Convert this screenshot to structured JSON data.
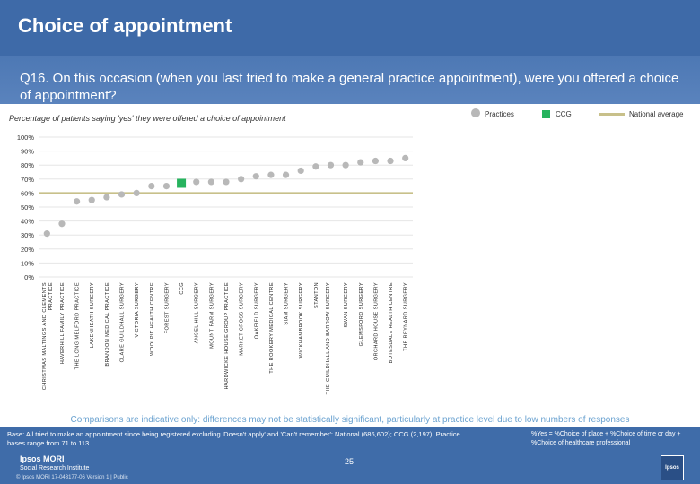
{
  "header": {
    "title": "Choice of appointment"
  },
  "question": "Q16. On this occasion (when you last tried to make a general practice appointment), were you offered a choice of appointment?",
  "subtitle": "Percentage of patients saying 'yes' they were offered a choice of appointment",
  "legend": {
    "practices": "Practices",
    "ccg": "CCG",
    "national": "National average"
  },
  "colors": {
    "practice": "#b8b8b8",
    "ccg": "#27b35e",
    "national": "#c8c08a",
    "band": "#3e6aa8"
  },
  "chart_data": {
    "type": "scatter",
    "title": "Percentage of patients saying 'yes' they were offered a choice of appointment",
    "ylim": [
      0,
      100
    ],
    "yticks": [
      "0%",
      "10%",
      "20%",
      "30%",
      "40%",
      "50%",
      "60%",
      "70%",
      "80%",
      "90%",
      "100%"
    ],
    "national_average": 60,
    "categories": [
      "CHRISTMAS MALTINGS AND CLEMENTS PRACTICE",
      "HAVERHILL FAMILY PRACTICE",
      "THE LONG MELFORD PRACTICE",
      "LAKENHEATH SURGERY",
      "BRANDON MEDICAL PRACTICE",
      "CLARE GUILDHALL SURGERY",
      "VICTORIA SURGERY",
      "WOOLPIT HEALTH CENTRE",
      "FOREST SURGERY",
      "CCG",
      "ANGEL HILL SURGERY",
      "MOUNT FARM SURGERY",
      "HARDWICKE HOUSE GROUP PRACTICE",
      "MARKET CROSS SURGERY",
      "OAKFIELD SURGERY",
      "THE ROOKERY MEDICAL CENTRE",
      "SIAM SURGERY",
      "WICKHAMBROOK SURGERY",
      "STANTON",
      "THE GUILDHALL AND BARROW SURGERY",
      "SWAN SURGERY",
      "GLEMSFORD SURGERY",
      "ORCHARD HOUSE SURGERY",
      "BOTESDALE HEALTH CENTRE",
      "THE REYNARD SURGERY"
    ],
    "values": [
      31,
      38,
      54,
      55,
      57,
      59,
      60,
      65,
      65,
      67,
      68,
      68,
      68,
      70,
      72,
      73,
      73,
      76,
      79,
      80,
      80,
      82,
      83,
      83,
      85
    ],
    "is_ccg": [
      false,
      false,
      false,
      false,
      false,
      false,
      false,
      false,
      false,
      true,
      false,
      false,
      false,
      false,
      false,
      false,
      false,
      false,
      false,
      false,
      false,
      false,
      false,
      false,
      false
    ]
  },
  "disclaimer": "Comparisons are indicative only: differences may not be statistically significant, particularly at practice level due to low numbers of responses",
  "footer": {
    "base": "Base: All tried to make an appointment since being registered excluding 'Doesn't apply' and 'Can't remember': National (686,602); CCG (2,197); Practice bases range from 71 to 113",
    "note": "%Yes = %Choice of place + %Choice of time or day + %Choice of healthcare professional",
    "page": "25",
    "logo_line1": "Ipsos MORI",
    "logo_line2": "Social Research Institute",
    "copyright": "© Ipsos MORI    17-043177-06 Version 1 | Public",
    "logo_right": "Ipsos"
  }
}
